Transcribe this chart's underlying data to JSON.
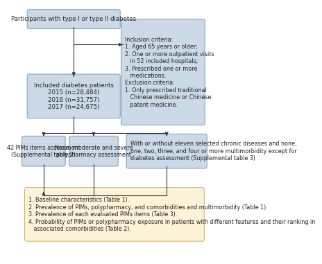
{
  "bg_color": "#ffffff",
  "box_top_text": "Participants with type I or type II diabetes",
  "box_top_color": "#ccdae8",
  "box_top_edge": "#7a9db8",
  "box_criteria_text": "Inclusion criteria:\n1. Aged 65 years or older;\n2. One or more outpatient visits\n   in 52 included hospitals;\n3. Prescribed one or more\n   medications.\nExclusion criteria:\n1. Only prescribed traditional\n   Chinese medicine or Chinese\n   patent medicine.",
  "box_criteria_color": "#ccdae8",
  "box_criteria_edge": "#7a9db8",
  "box_included_text": "Included diabetes patients\n2015 (n=28,484)\n2016 (n=31,757)\n2017 (n=24,675)",
  "box_included_color": "#ccdae8",
  "box_included_edge": "#7a9db8",
  "box_pims_text": "42 PIMs items assessment\n(Supplemental table 2)",
  "box_pims_color": "#ccdae8",
  "box_pims_edge": "#7a9db8",
  "box_poly_text": "None, moderate and severe\npolypharmacy assessment",
  "box_poly_color": "#ccdae8",
  "box_poly_edge": "#7a9db8",
  "box_comorbid_text": "With or without eleven selected chronic diseases and none,\none, two, three, and four or more multimorbidity except for\ndiabetes assessment (Supplemental table 3)",
  "box_comorbid_color": "#ccdae8",
  "box_comorbid_edge": "#7a9db8",
  "box_results_text": "1. Baseline characteristics (Table 1).\n2. Prevalence of PIMs, polypharmacy, and comorbidities and multimorbidity (Table 1).\n3. Prevalence of each evaluated PIMs items (Table 3).\n4. Probability of PIMs or polypharmacy exposure in patients with different features and their ranking in\n   associated comorbidities (Table 2).",
  "box_results_color": "#fdf3d8",
  "box_results_edge": "#c8b060",
  "arrow_color": "#333333",
  "text_color": "#222222",
  "fontsize_main": 6.2,
  "fontsize_crit": 5.8,
  "fontsize_res": 5.8
}
